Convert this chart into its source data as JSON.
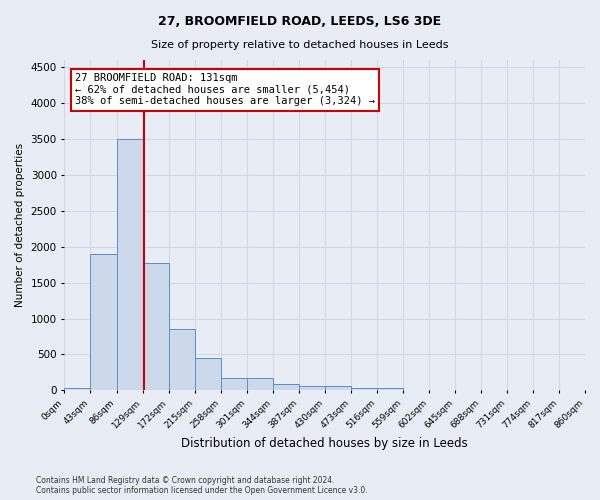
{
  "title1": "27, BROOMFIELD ROAD, LEEDS, LS6 3DE",
  "title2": "Size of property relative to detached houses in Leeds",
  "xlabel": "Distribution of detached houses by size in Leeds",
  "ylabel": "Number of detached properties",
  "bin_labels": [
    "0sqm",
    "43sqm",
    "86sqm",
    "129sqm",
    "172sqm",
    "215sqm",
    "258sqm",
    "301sqm",
    "344sqm",
    "387sqm",
    "430sqm",
    "473sqm",
    "516sqm",
    "559sqm",
    "602sqm",
    "645sqm",
    "688sqm",
    "731sqm",
    "774sqm",
    "817sqm",
    "860sqm"
  ],
  "bar_heights": [
    30,
    1900,
    3500,
    1775,
    850,
    450,
    170,
    165,
    90,
    60,
    55,
    35,
    30,
    0,
    0,
    0,
    0,
    0,
    0,
    0
  ],
  "bar_color": "#ccd9ea",
  "bar_edge_color": "#5b8fc9",
  "bar_width": 1.0,
  "vline_x": 3.05,
  "vline_color": "#cc0000",
  "annotation_text": "27 BROOMFIELD ROAD: 131sqm\n← 62% of detached houses are smaller (5,454)\n38% of semi-detached houses are larger (3,324) →",
  "annotation_box_color": "#cc0000",
  "ylim": [
    0,
    4600
  ],
  "yticks": [
    0,
    500,
    1000,
    1500,
    2000,
    2500,
    3000,
    3500,
    4000,
    4500
  ],
  "grid_color": "#d0d8e8",
  "bg_color": "#e8edf5",
  "footer": "Contains HM Land Registry data © Crown copyright and database right 2024.\nContains public sector information licensed under the Open Government Licence v3.0."
}
